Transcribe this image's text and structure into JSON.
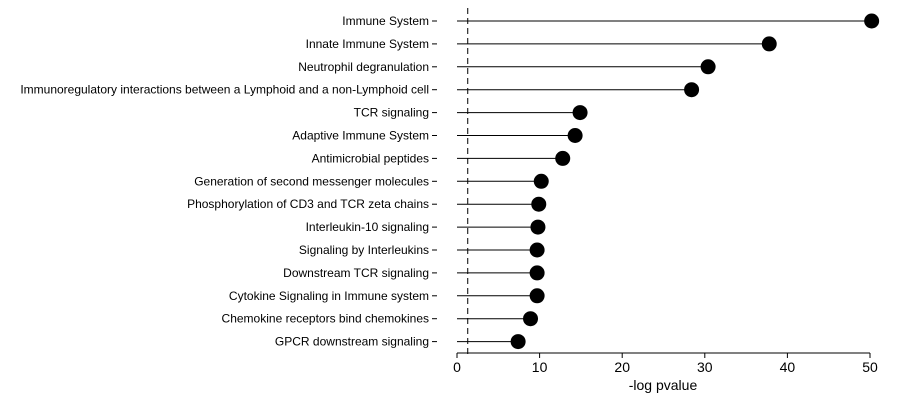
{
  "chart_data": {
    "type": "lollipop",
    "categories": [
      "Immune System",
      "Innate Immune System",
      "Neutrophil degranulation",
      "Immunoregulatory interactions between a Lymphoid and a non-Lymphoid cell",
      "TCR signaling",
      "Adaptive Immune System",
      "Antimicrobial peptides",
      "Generation of second messenger molecules",
      "Phosphorylation of CD3 and TCR zeta chains",
      "Interleukin-10 signaling",
      "Signaling by Interleukins",
      "Downstream TCR signaling",
      "Cytokine Signaling in Immune system",
      "Chemokine receptors bind chemokines",
      "GPCR downstream signaling"
    ],
    "values": [
      50.2,
      37.8,
      30.4,
      28.4,
      14.9,
      14.3,
      12.8,
      10.2,
      9.9,
      9.8,
      9.7,
      9.7,
      9.7,
      8.9,
      7.4
    ],
    "xlabel": "-log pvalue",
    "ylabel": "",
    "xlim": [
      0,
      50
    ],
    "xticks": [
      "0",
      "10",
      "20",
      "30",
      "40",
      "50"
    ],
    "threshold": 1.3,
    "marker_color": "#000000",
    "grid": false
  }
}
